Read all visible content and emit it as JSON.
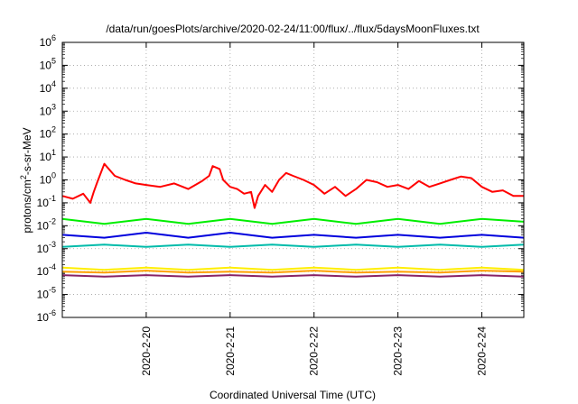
{
  "chart_data": {
    "type": "line",
    "title": "/data/run/goesPlots/archive/2020-02-24/11:00/flux/../flux/5daysMoonFluxes.txt",
    "xlabel": "Coordinated Universal Time (UTC)",
    "ylabel": "protons/cm²-s-sr-MeV",
    "ylabel_parts": {
      "pre": "protons/cm",
      "sup": "2",
      "post": "-s-sr-MeV"
    },
    "yscale": "log",
    "xlim": [
      "2020-02-19T00:00",
      "2020-02-24T12:00"
    ],
    "ylim": [
      1e-06,
      1000000.0
    ],
    "grid": true,
    "x_tick_dates": [
      "2020-02-20T00:00",
      "2020-02-21T00:00",
      "2020-02-22T00:00",
      "2020-02-23T00:00",
      "2020-02-24T00:00"
    ],
    "x_tick_labels": [
      "2020-2-20",
      "2020-2-21",
      "2020-2-22",
      "2020-2-23",
      "2020-2-24"
    ],
    "y_tick_values": [
      1e-06,
      1e-05,
      0.0001,
      0.001,
      0.01,
      0.1,
      1.0,
      10.0,
      100.0,
      1000.0,
      10000.0,
      100000.0,
      1000000.0
    ],
    "y_tick_labels": [
      {
        "base": "10",
        "exp": "-6"
      },
      {
        "base": "10",
        "exp": "-5"
      },
      {
        "base": "10",
        "exp": "-4"
      },
      {
        "base": "10",
        "exp": "-3"
      },
      {
        "base": "10",
        "exp": "-2"
      },
      {
        "base": "10",
        "exp": "-1"
      },
      {
        "base": "10",
        "exp": "0"
      },
      {
        "base": "10",
        "exp": "1"
      },
      {
        "base": "10",
        "exp": "2"
      },
      {
        "base": "10",
        "exp": "3"
      },
      {
        "base": "10",
        "exp": "4"
      },
      {
        "base": "10",
        "exp": "5"
      },
      {
        "base": "10",
        "exp": "6"
      }
    ],
    "series": [
      {
        "color": "#ff0000",
        "x": [
          "2020-02-19T00:00",
          "2020-02-19T03:00",
          "2020-02-19T06:00",
          "2020-02-19T08:00",
          "2020-02-19T09:00",
          "2020-02-19T10:00",
          "2020-02-19T12:00",
          "2020-02-19T15:00",
          "2020-02-19T18:00",
          "2020-02-19T21:00",
          "2020-02-20T00:00",
          "2020-02-20T04:00",
          "2020-02-20T08:00",
          "2020-02-20T12:00",
          "2020-02-20T16:00",
          "2020-02-20T18:00",
          "2020-02-20T19:00",
          "2020-02-20T21:00",
          "2020-02-20T22:00",
          "2020-02-21T00:00",
          "2020-02-21T02:00",
          "2020-02-21T04:00",
          "2020-02-21T06:00",
          "2020-02-21T07:00",
          "2020-02-21T08:00",
          "2020-02-21T10:00",
          "2020-02-21T12:00",
          "2020-02-21T14:00",
          "2020-02-21T16:00",
          "2020-02-21T18:00",
          "2020-02-21T21:00",
          "2020-02-22T00:00",
          "2020-02-22T03:00",
          "2020-02-22T06:00",
          "2020-02-22T09:00",
          "2020-02-22T12:00",
          "2020-02-22T15:00",
          "2020-02-22T18:00",
          "2020-02-22T21:00",
          "2020-02-23T00:00",
          "2020-02-23T03:00",
          "2020-02-23T06:00",
          "2020-02-23T09:00",
          "2020-02-23T12:00",
          "2020-02-23T15:00",
          "2020-02-23T18:00",
          "2020-02-23T21:00",
          "2020-02-24T00:00",
          "2020-02-24T03:00",
          "2020-02-24T06:00",
          "2020-02-24T09:00",
          "2020-02-24T12:00"
        ],
        "y": [
          0.2,
          0.15,
          0.25,
          0.1,
          0.3,
          0.8,
          5,
          1.5,
          1.0,
          0.7,
          0.6,
          0.5,
          0.7,
          0.4,
          0.9,
          1.5,
          4,
          3,
          1.0,
          0.5,
          0.4,
          0.25,
          0.3,
          0.06,
          0.2,
          0.6,
          0.3,
          1.0,
          2.0,
          1.5,
          1.0,
          0.6,
          0.25,
          0.5,
          0.2,
          0.4,
          1.0,
          0.8,
          0.5,
          0.6,
          0.4,
          0.9,
          0.5,
          0.7,
          1.0,
          1.4,
          1.2,
          0.5,
          0.3,
          0.35,
          0.2,
          0.2
        ]
      },
      {
        "color": "#00ee00",
        "x": [
          "2020-02-19T00:00",
          "2020-02-19T12:00",
          "2020-02-20T00:00",
          "2020-02-20T12:00",
          "2020-02-21T00:00",
          "2020-02-21T12:00",
          "2020-02-22T00:00",
          "2020-02-22T12:00",
          "2020-02-23T00:00",
          "2020-02-23T12:00",
          "2020-02-24T00:00",
          "2020-02-24T12:00"
        ],
        "y": [
          0.02,
          0.012,
          0.02,
          0.012,
          0.02,
          0.012,
          0.02,
          0.012,
          0.02,
          0.012,
          0.02,
          0.015
        ]
      },
      {
        "color": "#0000dd",
        "x": [
          "2020-02-19T00:00",
          "2020-02-19T12:00",
          "2020-02-20T00:00",
          "2020-02-20T12:00",
          "2020-02-21T00:00",
          "2020-02-21T12:00",
          "2020-02-22T00:00",
          "2020-02-22T12:00",
          "2020-02-23T00:00",
          "2020-02-23T12:00",
          "2020-02-24T00:00",
          "2020-02-24T12:00"
        ],
        "y": [
          0.004,
          0.003,
          0.005,
          0.003,
          0.005,
          0.003,
          0.004,
          0.003,
          0.004,
          0.003,
          0.004,
          0.003
        ]
      },
      {
        "color": "#00bbaa",
        "x": [
          "2020-02-19T00:00",
          "2020-02-19T12:00",
          "2020-02-20T00:00",
          "2020-02-20T12:00",
          "2020-02-21T00:00",
          "2020-02-21T12:00",
          "2020-02-22T00:00",
          "2020-02-22T12:00",
          "2020-02-23T00:00",
          "2020-02-23T12:00",
          "2020-02-24T00:00",
          "2020-02-24T12:00"
        ],
        "y": [
          0.0012,
          0.0015,
          0.0012,
          0.0015,
          0.0012,
          0.0015,
          0.0012,
          0.0015,
          0.0012,
          0.0015,
          0.0012,
          0.0015
        ]
      },
      {
        "color": "#ffee00",
        "x": [
          "2020-02-19T00:00",
          "2020-02-19T12:00",
          "2020-02-20T00:00",
          "2020-02-20T12:00",
          "2020-02-21T00:00",
          "2020-02-21T12:00",
          "2020-02-22T00:00",
          "2020-02-22T12:00",
          "2020-02-23T00:00",
          "2020-02-23T12:00",
          "2020-02-24T00:00",
          "2020-02-24T12:00"
        ],
        "y": [
          0.00015,
          0.00012,
          0.00015,
          0.00012,
          0.00015,
          0.00012,
          0.00015,
          0.00012,
          0.00015,
          0.00012,
          0.00015,
          0.00012
        ]
      },
      {
        "color": "#ffa000",
        "x": [
          "2020-02-19T00:00",
          "2020-02-19T12:00",
          "2020-02-20T00:00",
          "2020-02-20T12:00",
          "2020-02-21T00:00",
          "2020-02-21T12:00",
          "2020-02-22T00:00",
          "2020-02-22T12:00",
          "2020-02-23T00:00",
          "2020-02-23T12:00",
          "2020-02-24T00:00",
          "2020-02-24T12:00"
        ],
        "y": [
          0.0001,
          9e-05,
          0.00011,
          9e-05,
          0.0001,
          9e-05,
          0.00011,
          9e-05,
          0.0001,
          9e-05,
          0.00011,
          0.0001
        ]
      },
      {
        "color": "#882266",
        "x": [
          "2020-02-19T00:00",
          "2020-02-19T12:00",
          "2020-02-20T00:00",
          "2020-02-20T12:00",
          "2020-02-21T00:00",
          "2020-02-21T12:00",
          "2020-02-22T00:00",
          "2020-02-22T12:00",
          "2020-02-23T00:00",
          "2020-02-23T12:00",
          "2020-02-24T00:00",
          "2020-02-24T12:00"
        ],
        "y": [
          7e-05,
          6e-05,
          7e-05,
          6e-05,
          7e-05,
          6e-05,
          7e-05,
          6e-05,
          7e-05,
          6e-05,
          7e-05,
          6e-05
        ]
      }
    ]
  }
}
